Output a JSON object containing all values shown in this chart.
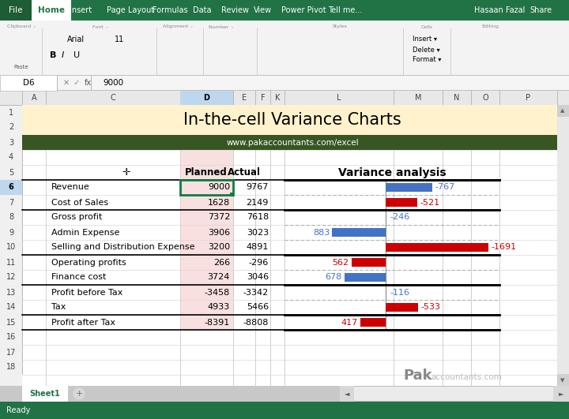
{
  "title": "In-the-cell Variance Charts",
  "subtitle": "www.pakaccountants.com/excel",
  "title_bg": "#FFF2CC",
  "subtitle_bg": "#375623",
  "rows": [
    {
      "label": "Revenue",
      "planned": 9000,
      "actual": 9767,
      "variance": -767,
      "section_start": true,
      "bar_color": "blue",
      "show_bar": true
    },
    {
      "label": "Cost of Sales",
      "planned": 1628,
      "actual": 2149,
      "variance": -521,
      "section_start": false,
      "bar_color": "red",
      "show_bar": true
    },
    {
      "label": "Gross profit",
      "planned": 7372,
      "actual": 7618,
      "variance": -246,
      "section_start": true,
      "bar_color": "blue",
      "show_bar": false
    },
    {
      "label": "Admin Expense",
      "planned": 3906,
      "actual": 3023,
      "variance": 883,
      "section_start": false,
      "bar_color": "blue",
      "show_bar": true
    },
    {
      "label": "Selling and Distribution Expense",
      "planned": 3200,
      "actual": 4891,
      "variance": -1691,
      "section_start": false,
      "bar_color": "red",
      "show_bar": true
    },
    {
      "label": "Operating profits",
      "planned": 266,
      "actual": -296,
      "variance": 562,
      "section_start": true,
      "bar_color": "red",
      "show_bar": true
    },
    {
      "label": "Finance cost",
      "planned": 3724,
      "actual": 3046,
      "variance": 678,
      "section_start": false,
      "bar_color": "blue",
      "show_bar": true
    },
    {
      "label": "Profit before Tax",
      "planned": -3458,
      "actual": -3342,
      "variance": -116,
      "section_start": true,
      "bar_color": "blue",
      "show_bar": false
    },
    {
      "label": "Tax",
      "planned": 4933,
      "actual": 5466,
      "variance": -533,
      "section_start": false,
      "bar_color": "red",
      "show_bar": true
    },
    {
      "label": "Profit after Tax",
      "planned": -8391,
      "actual": -8808,
      "variance": 417,
      "section_start": true,
      "bar_color": "red",
      "show_bar": true
    }
  ],
  "planned_col_bg": "#F4CCCC",
  "bar_max_abs": 1691,
  "bar_blue": "#4472C4",
  "bar_red": "#CC0000",
  "text_blue": "#4472C4",
  "text_red": "#CC0000",
  "variance_header": "Variance analysis",
  "toolbar_green": "#217346",
  "ribbon_bg": "#F3F3F3",
  "formula_bar_bg": "#F5F5F5",
  "col_header_bg": "#E8E8E8",
  "row_header_bg": "#F0F0F0",
  "grid_color": "#D0D0D0",
  "sheet_tab_color": "#217346",
  "status_bar_color": "#217346",
  "col_d_highlight": "#BDEEFF",
  "selected_cell_color": "#107C41"
}
